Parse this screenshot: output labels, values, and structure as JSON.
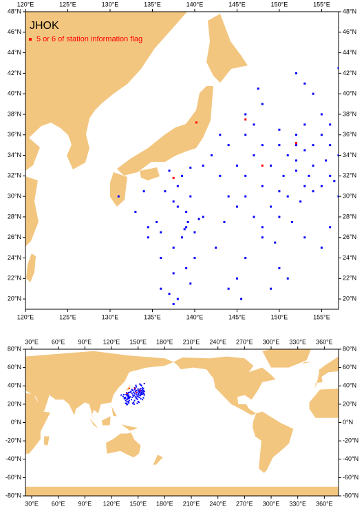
{
  "chart_data": [
    {
      "type": "map",
      "title": "JHOK",
      "land_color": "#f3c680",
      "xlim": [
        120,
        157
      ],
      "ylim": [
        19,
        48
      ],
      "xticks": [
        {
          "value": 120,
          "label": "120°E"
        },
        {
          "value": 125,
          "label": "125°E"
        },
        {
          "value": 130,
          "label": "130°E"
        },
        {
          "value": 135,
          "label": "135°E"
        },
        {
          "value": 140,
          "label": "140°E"
        },
        {
          "value": 145,
          "label": "145°E"
        },
        {
          "value": 150,
          "label": "150°E"
        },
        {
          "value": 155,
          "label": "155°E"
        }
      ],
      "yticks": [
        {
          "value": 20,
          "label": "20°N"
        },
        {
          "value": 22,
          "label": "22°N"
        },
        {
          "value": 24,
          "label": "24°N"
        },
        {
          "value": 26,
          "label": "26°N"
        },
        {
          "value": 28,
          "label": "28°N"
        },
        {
          "value": 30,
          "label": "30°N"
        },
        {
          "value": 32,
          "label": "32°N"
        },
        {
          "value": 34,
          "label": "34°N"
        },
        {
          "value": 36,
          "label": "36°N"
        },
        {
          "value": 38,
          "label": "38°N"
        },
        {
          "value": 40,
          "label": "40°N"
        },
        {
          "value": 42,
          "label": "42°N"
        },
        {
          "value": 44,
          "label": "44°N"
        },
        {
          "value": 46,
          "label": "46°N"
        },
        {
          "value": 48,
          "label": "48°N"
        }
      ],
      "series": [
        {
          "color": "#0000ff",
          "x": [
            137.5,
            138,
            137,
            136,
            139.5,
            137.5,
            139,
            136,
            140,
            137.5,
            138.5,
            136,
            139,
            139.2,
            140.5,
            141,
            139,
            138,
            137.5,
            139.5,
            136.5,
            134,
            138,
            138.5,
            137,
            139.5,
            141,
            134.5,
            133,
            131,
            134.5,
            140,
            138.8,
            135.5,
            142,
            143,
            144,
            145,
            146,
            143.5,
            142.5,
            145,
            144,
            145.5,
            146,
            148,
            147,
            149,
            150,
            151,
            150.5,
            152,
            153,
            154,
            155,
            156,
            157,
            149,
            147,
            148,
            150,
            151,
            152,
            153,
            154,
            155,
            156,
            157,
            146,
            147,
            148,
            147.5,
            152,
            153,
            154,
            155,
            156,
            153,
            152,
            150,
            145,
            144,
            143,
            146,
            150,
            149,
            151,
            153,
            155,
            156,
            157,
            146,
            148,
            150,
            152.5,
            151.5,
            149.5,
            148,
            154,
            155.5,
            156.5,
            153.5,
            152
          ],
          "y": [
            19.5,
            20,
            20.5,
            21,
            21.5,
            22.5,
            23,
            24,
            24,
            25,
            26,
            26.5,
            27,
            27.5,
            27.8,
            28,
            28.5,
            29,
            29.5,
            30,
            30.5,
            30.5,
            31,
            32,
            32.5,
            32.8,
            33,
            27,
            28.5,
            30,
            26,
            26.5,
            26.8,
            27.5,
            34,
            32,
            30,
            29,
            30,
            27.5,
            25,
            22,
            21,
            20,
            24,
            26,
            28,
            29,
            28,
            30,
            32,
            32.5,
            31,
            30.5,
            31,
            32,
            30,
            33,
            34,
            35,
            35,
            34,
            35,
            34.5,
            35,
            36,
            35,
            34,
            38,
            37,
            39,
            40.5,
            42,
            41,
            40,
            38,
            37,
            37,
            36,
            36.5,
            33,
            35,
            36,
            36,
            23,
            21,
            22,
            26,
            25,
            27,
            42.5,
            32,
            31,
            30.5,
            29.5,
            27.5,
            25.5,
            27,
            33,
            33.5,
            31.5,
            32,
            33.5
          ]
        },
        {
          "name": "5 or 6 of station information flag",
          "color": "#ff0000",
          "x": [
            140.2,
            137.5,
            146,
            148,
            152
          ],
          "y": [
            37.2,
            31.8,
            37.5,
            33,
            35.2
          ]
        }
      ]
    },
    {
      "type": "map",
      "land_color": "#f3c680",
      "xlim": [
        23,
        376
      ],
      "ylim": [
        -80,
        80
      ],
      "xticks": [
        {
          "value": 30,
          "label": "30°E"
        },
        {
          "value": 60,
          "label": "60°E"
        },
        {
          "value": 90,
          "label": "90°E"
        },
        {
          "value": 120,
          "label": "120°E"
        },
        {
          "value": 150,
          "label": "150°E"
        },
        {
          "value": 180,
          "label": "180°E"
        },
        {
          "value": 210,
          "label": "210°E"
        },
        {
          "value": 240,
          "label": "240°E"
        },
        {
          "value": 270,
          "label": "270°E"
        },
        {
          "value": 300,
          "label": "300°E"
        },
        {
          "value": 330,
          "label": "330°E"
        },
        {
          "value": 360,
          "label": "360°E"
        }
      ],
      "yticks": [
        {
          "value": -80,
          "label": "-80°N"
        },
        {
          "value": -60,
          "label": "-60°N"
        },
        {
          "value": -40,
          "label": "-40°N"
        },
        {
          "value": -20,
          "label": "-20°N"
        },
        {
          "value": 0,
          "label": "0°N"
        },
        {
          "value": 20,
          "label": "20°N"
        },
        {
          "value": 40,
          "label": "40°N"
        },
        {
          "value": 60,
          "label": "60°N"
        },
        {
          "value": 80,
          "label": "80°N"
        }
      ]
    }
  ]
}
